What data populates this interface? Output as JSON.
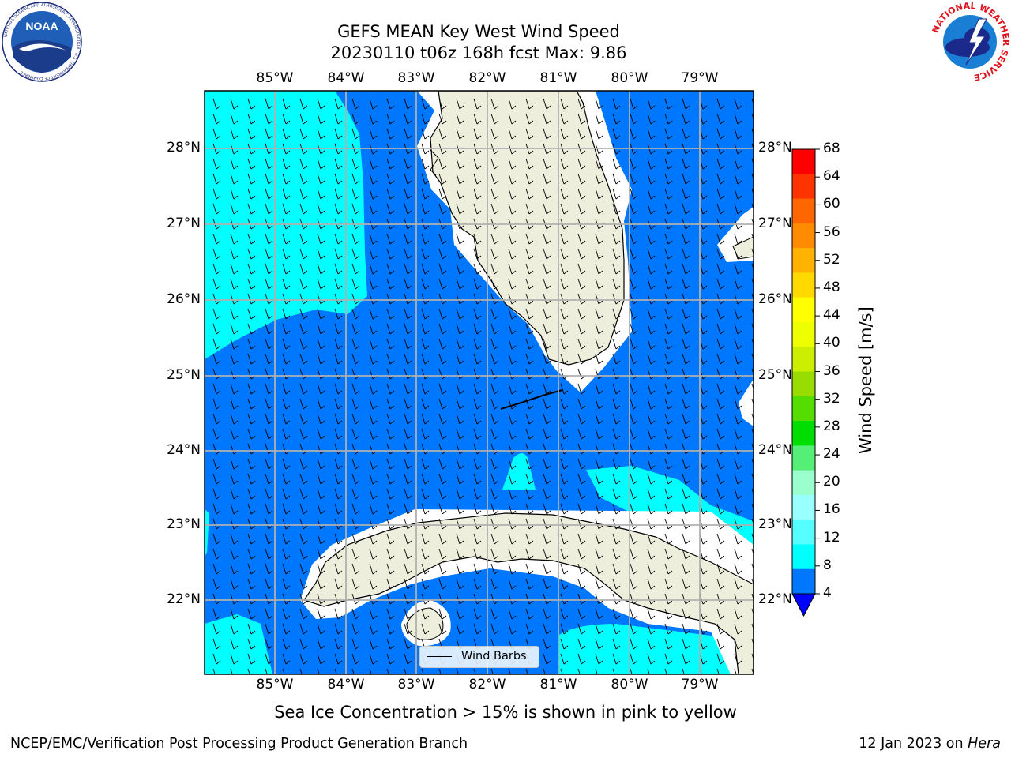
{
  "header": {
    "title_line1": "GEFS MEAN Key West Wind Speed",
    "title_line2": "20230110 t06z 168h fcst   Max: 9.86"
  },
  "logos": {
    "noaa": {
      "text": "NOAA",
      "ring_text": "NATIONAL OCEANIC AND ATMOSPHERIC ADMINISTRATION · U.S. DEPARTMENT OF COMMERCE"
    },
    "nws": {
      "ring_text": "NATIONAL WEATHER SERVICE"
    }
  },
  "map": {
    "lon_labels": [
      "85°W",
      "84°W",
      "83°W",
      "82°W",
      "81°W",
      "80°W",
      "79°W"
    ],
    "lat_labels": [
      "28°N",
      "27°N",
      "26°N",
      "25°N",
      "24°N",
      "23°N",
      "22°N"
    ],
    "colors": {
      "water_low": "#0077ff",
      "water_mid": "#00ffff",
      "land": "#eeeedc",
      "grid": "#b0b0b0"
    },
    "legend_label": "Wind Barbs"
  },
  "colorbar": {
    "title": "Wind Speed [m/s]",
    "ticks": [
      "68",
      "64",
      "60",
      "56",
      "52",
      "48",
      "44",
      "40",
      "36",
      "32",
      "28",
      "24",
      "20",
      "16",
      "12",
      "8",
      "4"
    ],
    "colors": [
      "#ff0000",
      "#ff3300",
      "#ff6600",
      "#ff8c00",
      "#ffb300",
      "#ffd900",
      "#ffff00",
      "#eeff00",
      "#ccee00",
      "#99dd00",
      "#55dd00",
      "#00dd00",
      "#55ee77",
      "#99ffcc",
      "#99ffff",
      "#55ffff",
      "#00ffff",
      "#0077ff"
    ],
    "under_color": "#0000ff"
  },
  "note": "Sea Ice Concentration > 15% is shown in pink to yellow",
  "footer": {
    "left": "NCEP/EMC/Verification Post Processing Product Generation Branch",
    "right_date": "12 Jan 2023 on ",
    "right_host": "Hera"
  }
}
